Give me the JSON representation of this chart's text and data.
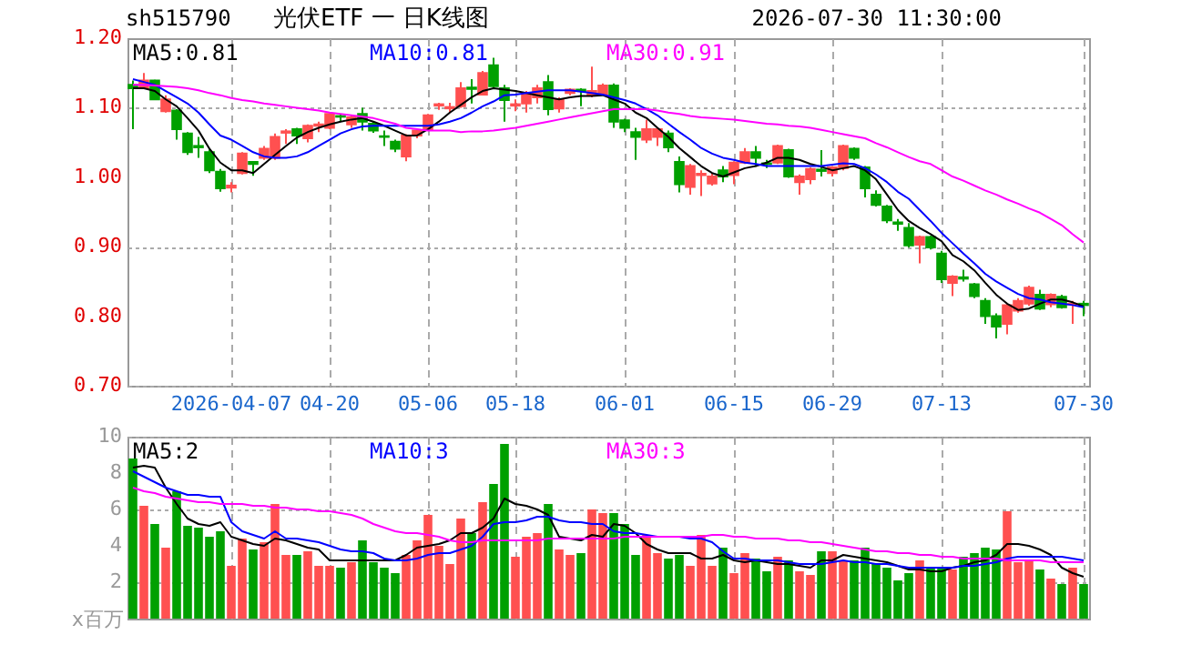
{
  "chart_data": [
    {
      "type": "candlestick",
      "title": "光伏ETF 一 日K线图",
      "annotations": [
        "sh515790",
        "2026-07-30 11:30:00"
      ],
      "categories": [
        null,
        null,
        null,
        null,
        null,
        null,
        null,
        null,
        null,
        "2026-04-07",
        null,
        null,
        null,
        null,
        null,
        null,
        null,
        null,
        "04-20",
        null,
        null,
        null,
        null,
        null,
        null,
        null,
        null,
        "05-06",
        null,
        null,
        null,
        null,
        null,
        null,
        null,
        "05-18",
        null,
        null,
        null,
        null,
        null,
        null,
        null,
        null,
        null,
        "06-01",
        null,
        null,
        null,
        null,
        null,
        null,
        null,
        null,
        null,
        "06-15",
        null,
        null,
        null,
        null,
        null,
        null,
        null,
        null,
        "06-29",
        null,
        null,
        null,
        null,
        null,
        null,
        null,
        null,
        null,
        "07-13",
        null,
        null,
        null,
        null,
        null,
        null,
        null,
        null,
        null,
        null,
        null,
        null,
        "07-30"
      ],
      "ohlc": [
        [
          1.133,
          1.139,
          1.069,
          1.128
        ],
        [
          1.128,
          1.15,
          1.128,
          1.139
        ],
        [
          1.139,
          1.14,
          1.112,
          1.112
        ],
        [
          1.095,
          1.118,
          1.093,
          1.112
        ],
        [
          1.096,
          1.098,
          1.054,
          1.069
        ],
        [
          1.063,
          1.065,
          1.032,
          1.036
        ],
        [
          1.045,
          1.058,
          1.028,
          1.043
        ],
        [
          1.036,
          1.04,
          1.006,
          1.01
        ],
        [
          1.008,
          1.012,
          0.979,
          0.984
        ],
        [
          0.985,
          0.993,
          0.978,
          0.988
        ],
        [
          1.006,
          1.036,
          1.004,
          1.034
        ],
        [
          1.022,
          1.023,
          1.002,
          1.019
        ],
        [
          1.028,
          1.045,
          1.025,
          1.041
        ],
        [
          1.028,
          1.063,
          1.025,
          1.058
        ],
        [
          1.064,
          1.069,
          1.048,
          1.066
        ],
        [
          1.069,
          1.071,
          1.048,
          1.06
        ],
        [
          1.056,
          1.076,
          1.05,
          1.074
        ],
        [
          1.074,
          1.08,
          1.065,
          1.076
        ],
        [
          1.071,
          1.093,
          1.069,
          1.091
        ],
        [
          1.088,
          1.091,
          1.08,
          1.087
        ],
        [
          1.076,
          1.089,
          1.071,
          1.086
        ],
        [
          1.091,
          1.1,
          1.067,
          1.08
        ],
        [
          1.077,
          1.08,
          1.064,
          1.067
        ],
        [
          1.059,
          1.067,
          1.045,
          1.058
        ],
        [
          1.051,
          1.054,
          1.036,
          1.041
        ],
        [
          1.03,
          1.062,
          1.023,
          1.06
        ],
        [
          1.06,
          1.069,
          1.056,
          1.067
        ],
        [
          1.069,
          1.091,
          1.067,
          1.089
        ],
        [
          1.103,
          1.107,
          1.097,
          1.105
        ],
        [
          1.099,
          1.107,
          1.093,
          1.101
        ],
        [
          1.102,
          1.137,
          1.1,
          1.128
        ],
        [
          1.129,
          1.141,
          1.106,
          1.127
        ],
        [
          1.119,
          1.153,
          1.118,
          1.15
        ],
        [
          1.161,
          1.172,
          1.128,
          1.131
        ],
        [
          1.128,
          1.133,
          1.08,
          1.111
        ],
        [
          1.103,
          1.112,
          1.095,
          1.105
        ],
        [
          1.106,
          1.124,
          1.093,
          1.121
        ],
        [
          1.115,
          1.133,
          1.106,
          1.128
        ],
        [
          1.137,
          1.147,
          1.089,
          1.098
        ],
        [
          1.099,
          1.115,
          1.093,
          1.111
        ],
        [
          1.121,
          1.128,
          1.118,
          1.126
        ],
        [
          1.126,
          1.128,
          1.102,
          1.124
        ],
        [
          1.119,
          1.159,
          1.115,
          1.124
        ],
        [
          1.119,
          1.135,
          1.118,
          1.132
        ],
        [
          1.132,
          1.135,
          1.071,
          1.08
        ],
        [
          1.082,
          1.084,
          1.065,
          1.071
        ],
        [
          1.065,
          1.071,
          1.025,
          1.058
        ],
        [
          1.054,
          1.083,
          1.049,
          1.069
        ],
        [
          1.058,
          1.071,
          1.045,
          1.069
        ],
        [
          1.063,
          1.067,
          1.036,
          1.043
        ],
        [
          1.022,
          1.03,
          0.978,
          0.99
        ],
        [
          0.986,
          1.019,
          0.975,
          1.016
        ],
        [
          1.003,
          1.01,
          0.973,
          1.005
        ],
        [
          0.991,
          1.006,
          0.988,
          1.001
        ],
        [
          1.01,
          1.016,
          0.993,
          1.001
        ],
        [
          1.003,
          1.023,
          0.99,
          1.021
        ],
        [
          1.021,
          1.042,
          1.019,
          1.036
        ],
        [
          1.036,
          1.045,
          1.015,
          1.028
        ],
        [
          1.02,
          1.025,
          1.013,
          1.019
        ],
        [
          1.021,
          1.047,
          1.019,
          1.045
        ],
        [
          1.039,
          1.041,
          0.999,
          1.001
        ],
        [
          0.993,
          1.004,
          0.975,
          1.001
        ],
        [
          0.997,
          1.014,
          0.99,
          1.012
        ],
        [
          1.011,
          1.039,
          1.001,
          1.009
        ],
        [
          1.006,
          1.016,
          1.001,
          1.014
        ],
        [
          1.013,
          1.047,
          1.01,
          1.045
        ],
        [
          1.041,
          1.043,
          1.025,
          1.028
        ],
        [
          1.014,
          1.016,
          0.971,
          0.984
        ],
        [
          0.975,
          0.981,
          0.958,
          0.96
        ],
        [
          0.958,
          0.96,
          0.934,
          0.938
        ],
        [
          0.935,
          0.94,
          0.923,
          0.933
        ],
        [
          0.927,
          0.934,
          0.899,
          0.902
        ],
        [
          0.903,
          0.916,
          0.876,
          0.914
        ],
        [
          0.914,
          0.916,
          0.896,
          0.899
        ],
        [
          0.89,
          0.894,
          0.848,
          0.853
        ],
        [
          0.848,
          0.859,
          0.829,
          0.857
        ],
        [
          0.856,
          0.867,
          0.85,
          0.854
        ],
        [
          0.846,
          0.848,
          0.826,
          0.829
        ],
        [
          0.822,
          0.826,
          0.789,
          0.8
        ],
        [
          0.8,
          0.804,
          0.768,
          0.785
        ],
        [
          0.789,
          0.818,
          0.774,
          0.816
        ],
        [
          0.808,
          0.826,
          0.805,
          0.822
        ],
        [
          0.818,
          0.844,
          0.815,
          0.841
        ],
        [
          0.831,
          0.838,
          0.809,
          0.811
        ],
        [
          0.817,
          0.833,
          0.813,
          0.831
        ],
        [
          0.828,
          0.831,
          0.811,
          0.813
        ],
        [
          0.817,
          0.822,
          0.789,
          0.818
        ],
        [
          0.818,
          0.822,
          0.8,
          0.816
        ]
      ],
      "colors": [
        "#00a000",
        "#ff5050",
        "#00a000",
        "#ff5050",
        "#00a000",
        "#00a000",
        "#00a000",
        "#00a000",
        "#00a000",
        "#ff5050",
        "#ff5050",
        "#00a000",
        "#ff5050",
        "#ff5050",
        "#ff5050",
        "#00a000",
        "#ff5050",
        "#ff5050",
        "#ff5050",
        "#00a000",
        "#ff5050",
        "#00a000",
        "#00a000",
        "#00a000",
        "#00a000",
        "#ff5050",
        "#ff5050",
        "#ff5050",
        "#ff5050",
        "#ff5050",
        "#ff5050",
        "#00a000",
        "#ff5050",
        "#00a000",
        "#00a000",
        "#ff5050",
        "#ff5050",
        "#ff5050",
        "#00a000",
        "#ff5050",
        "#ff5050",
        "#00a000",
        "#ff5050",
        "#ff5050",
        "#00a000",
        "#00a000",
        "#00a000",
        "#ff5050",
        "#ff5050",
        "#00a000",
        "#00a000",
        "#ff5050",
        "#ff5050",
        "#ff5050",
        "#00a000",
        "#ff5050",
        "#ff5050",
        "#00a000",
        "#00a000",
        "#ff5050",
        "#00a000",
        "#ff5050",
        "#ff5050",
        "#00a000",
        "#ff5050",
        "#ff5050",
        "#00a000",
        "#00a000",
        "#00a000",
        "#00a000",
        "#00a000",
        "#00a000",
        "#ff5050",
        "#00a000",
        "#00a000",
        "#ff5050",
        "#00a000",
        "#00a000",
        "#00a000",
        "#00a000",
        "#ff5050",
        "#ff5050",
        "#ff5050",
        "#00a000",
        "#ff5050",
        "#00a000",
        "#ff5050",
        "#00a000"
      ],
      "series": [
        {
          "name": "MA5:0.81",
          "color": "#000000",
          "type": "line",
          "values": [
            1.128,
            1.128,
            1.124,
            1.112,
            1.102,
            1.085,
            1.067,
            1.041,
            1.021,
            1.01,
            1.01,
            1.006,
            1.019,
            1.032,
            1.045,
            1.057,
            1.065,
            1.071,
            1.076,
            1.08,
            1.083,
            1.085,
            1.08,
            1.074,
            1.067,
            1.06,
            1.06,
            1.069,
            1.08,
            1.093,
            1.104,
            1.115,
            1.124,
            1.128,
            1.126,
            1.124,
            1.121,
            1.118,
            1.115,
            1.112,
            1.115,
            1.117,
            1.117,
            1.118,
            1.112,
            1.106,
            1.093,
            1.085,
            1.071,
            1.058,
            1.042,
            1.029,
            1.016,
            1.006,
            1.001,
            1.007,
            1.013,
            1.016,
            1.021,
            1.028,
            1.028,
            1.025,
            1.019,
            1.015,
            1.01,
            1.013,
            1.016,
            1.01,
            0.997,
            0.975,
            0.953,
            0.937,
            0.927,
            0.918,
            0.908,
            0.888,
            0.879,
            0.866,
            0.848,
            0.831,
            0.818,
            0.809,
            0.811,
            0.818,
            0.824,
            0.824,
            0.82,
            0.814
          ]
        },
        {
          "name": "MA10:0.81",
          "color": "#0000ff",
          "type": "line",
          "values": [
            1.141,
            1.137,
            1.133,
            1.124,
            1.115,
            1.106,
            1.093,
            1.076,
            1.06,
            1.054,
            1.045,
            1.036,
            1.03,
            1.028,
            1.028,
            1.03,
            1.036,
            1.045,
            1.054,
            1.063,
            1.069,
            1.073,
            1.074,
            1.074,
            1.074,
            1.074,
            1.074,
            1.074,
            1.076,
            1.08,
            1.085,
            1.093,
            1.102,
            1.109,
            1.118,
            1.119,
            1.121,
            1.123,
            1.125,
            1.125,
            1.125,
            1.123,
            1.121,
            1.119,
            1.115,
            1.111,
            1.106,
            1.098,
            1.089,
            1.077,
            1.065,
            1.054,
            1.042,
            1.034,
            1.028,
            1.025,
            1.021,
            1.019,
            1.016,
            1.016,
            1.016,
            1.016,
            1.016,
            1.016,
            1.018,
            1.02,
            1.019,
            1.013,
            1.004,
            0.993,
            0.979,
            0.969,
            0.953,
            0.937,
            0.92,
            0.905,
            0.89,
            0.876,
            0.861,
            0.85,
            0.841,
            0.832,
            0.826,
            0.824,
            0.82,
            0.818,
            0.816,
            0.813
          ]
        },
        {
          "name": "MA30:0.91",
          "color": "#ff00ff",
          "type": "line",
          "values": [
            1.133,
            1.133,
            1.132,
            1.131,
            1.13,
            1.128,
            1.125,
            1.121,
            1.118,
            1.114,
            1.111,
            1.109,
            1.106,
            1.104,
            1.102,
            1.1,
            1.098,
            1.096,
            1.093,
            1.091,
            1.089,
            1.087,
            1.085,
            1.081,
            1.077,
            1.071,
            1.069,
            1.067,
            1.067,
            1.067,
            1.065,
            1.066,
            1.066,
            1.067,
            1.069,
            1.071,
            1.074,
            1.077,
            1.08,
            1.083,
            1.086,
            1.089,
            1.092,
            1.095,
            1.098,
            1.098,
            1.098,
            1.098,
            1.096,
            1.093,
            1.091,
            1.088,
            1.086,
            1.085,
            1.084,
            1.083,
            1.081,
            1.079,
            1.077,
            1.076,
            1.074,
            1.073,
            1.071,
            1.068,
            1.065,
            1.062,
            1.059,
            1.056,
            1.049,
            1.043,
            1.036,
            1.029,
            1.023,
            1.019,
            1.01,
            1.001,
            0.995,
            0.988,
            0.981,
            0.975,
            0.968,
            0.962,
            0.955,
            0.949,
            0.94,
            0.931,
            0.918,
            0.906
          ]
        }
      ],
      "ylim": [
        0.7,
        1.2
      ],
      "yticks": [
        {
          "value": 0.7,
          "label": "0.70"
        },
        {
          "value": 0.8,
          "label": "0.80"
        },
        {
          "value": 0.9,
          "label": "0.90"
        },
        {
          "value": 1.0,
          "label": "1.00"
        },
        {
          "value": 1.1,
          "label": "1.10"
        },
        {
          "value": 1.2,
          "label": "1.20"
        }
      ],
      "grid": true,
      "legend": "top"
    },
    {
      "type": "bar",
      "annotations": [
        "x百万"
      ],
      "categories": [
        null,
        null,
        null,
        null,
        null,
        null,
        null,
        null,
        null,
        null,
        null,
        null,
        null,
        null,
        null,
        null,
        null,
        null,
        null,
        null,
        null,
        null,
        null,
        null,
        null,
        null,
        null,
        null,
        null,
        null,
        null,
        null,
        null,
        null,
        null,
        null,
        null,
        null,
        null,
        null,
        null,
        null,
        null,
        null,
        null,
        null,
        null,
        null,
        null,
        null,
        null,
        null,
        null,
        null,
        null,
        null,
        null,
        null,
        null,
        null,
        null,
        null,
        null,
        null,
        null,
        null,
        null,
        null,
        null,
        null,
        null,
        null,
        null,
        null,
        null,
        null,
        null,
        null,
        null,
        null,
        null,
        null,
        null,
        null,
        null,
        null,
        null,
        null
      ],
      "values": [
        8.8,
        6.2,
        5.2,
        3.9,
        7.0,
        5.1,
        5.0,
        4.5,
        4.8,
        2.9,
        4.4,
        3.8,
        4.2,
        6.3,
        3.5,
        3.5,
        3.7,
        2.9,
        2.9,
        2.8,
        3.1,
        4.3,
        3.1,
        2.8,
        2.5,
        3.5,
        4.3,
        5.7,
        4.0,
        3.0,
        5.5,
        4.7,
        6.4,
        7.4,
        9.6,
        3.4,
        4.5,
        4.7,
        6.3,
        3.8,
        3.5,
        3.6,
        6.0,
        5.8,
        5.8,
        5.2,
        3.5,
        4.6,
        3.6,
        3.3,
        3.5,
        2.9,
        4.6,
        2.9,
        3.9,
        2.5,
        3.6,
        3.3,
        2.6,
        3.4,
        3.2,
        2.6,
        2.4,
        3.7,
        3.7,
        3.2,
        3.2,
        3.9,
        3.0,
        2.8,
        2.1,
        2.5,
        3.2,
        2.8,
        2.8,
        2.7,
        3.4,
        3.6,
        3.9,
        3.8,
        5.9,
        3.1,
        3.2,
        2.7,
        2.2,
        1.9,
        2.8,
        1.9
      ],
      "colors": [
        "#00a000",
        "#ff5050",
        "#00a000",
        "#ff5050",
        "#00a000",
        "#00a000",
        "#00a000",
        "#00a000",
        "#00a000",
        "#ff5050",
        "#ff5050",
        "#00a000",
        "#ff5050",
        "#ff5050",
        "#ff5050",
        "#00a000",
        "#ff5050",
        "#ff5050",
        "#ff5050",
        "#00a000",
        "#ff5050",
        "#00a000",
        "#00a000",
        "#00a000",
        "#00a000",
        "#ff5050",
        "#ff5050",
        "#ff5050",
        "#ff5050",
        "#ff5050",
        "#ff5050",
        "#00a000",
        "#ff5050",
        "#00a000",
        "#00a000",
        "#ff5050",
        "#ff5050",
        "#ff5050",
        "#00a000",
        "#ff5050",
        "#ff5050",
        "#00a000",
        "#ff5050",
        "#ff5050",
        "#00a000",
        "#00a000",
        "#00a000",
        "#ff5050",
        "#ff5050",
        "#00a000",
        "#00a000",
        "#ff5050",
        "#ff5050",
        "#ff5050",
        "#00a000",
        "#ff5050",
        "#ff5050",
        "#00a000",
        "#00a000",
        "#ff5050",
        "#00a000",
        "#ff5050",
        "#ff5050",
        "#00a000",
        "#ff5050",
        "#ff5050",
        "#00a000",
        "#00a000",
        "#00a000",
        "#00a000",
        "#00a000",
        "#00a000",
        "#ff5050",
        "#00a000",
        "#00a000",
        "#ff5050",
        "#00a000",
        "#00a000",
        "#00a000",
        "#00a000",
        "#ff5050",
        "#ff5050",
        "#ff5050",
        "#00a000",
        "#ff5050",
        "#00a000",
        "#ff5050",
        "#00a000"
      ],
      "series": [
        {
          "name": "MA5:2",
          "color": "#000000",
          "type": "line",
          "values": [
            8.3,
            8.4,
            8.3,
            7.2,
            6.3,
            5.5,
            5.2,
            5.1,
            5.3,
            4.5,
            4.3,
            4.1,
            4.0,
            4.4,
            4.3,
            4.1,
            3.9,
            3.8,
            3.2,
            3.2,
            3.2,
            3.2,
            3.2,
            3.2,
            3.2,
            3.5,
            3.9,
            4.0,
            4.1,
            4.3,
            4.7,
            4.7,
            5.0,
            5.5,
            6.6,
            6.3,
            6.2,
            6.0,
            5.7,
            4.5,
            4.4,
            4.3,
            4.6,
            4.5,
            5.2,
            5.1,
            4.7,
            4.1,
            3.8,
            3.6,
            3.6,
            3.6,
            3.3,
            3.3,
            3.5,
            3.2,
            3.1,
            3.2,
            3.1,
            3.0,
            3.0,
            2.9,
            2.8,
            3.2,
            3.2,
            3.5,
            3.4,
            3.3,
            3.2,
            3.1,
            2.9,
            2.7,
            2.7,
            2.6,
            2.6,
            2.8,
            2.9,
            3.1,
            3.2,
            3.5,
            4.1,
            4.1,
            4.0,
            3.8,
            3.5,
            2.8,
            2.5,
            2.3
          ]
        },
        {
          "name": "MA10:3",
          "color": "#0000ff",
          "type": "line",
          "values": [
            8.1,
            7.8,
            7.5,
            7.2,
            7.0,
            6.8,
            6.8,
            6.7,
            6.7,
            5.3,
            4.8,
            4.6,
            4.4,
            4.8,
            4.4,
            4.4,
            4.3,
            4.2,
            4.0,
            3.8,
            3.7,
            3.7,
            3.6,
            3.3,
            3.2,
            3.2,
            3.3,
            3.5,
            3.6,
            3.6,
            3.8,
            4.0,
            4.5,
            5.2,
            5.3,
            5.3,
            5.4,
            5.6,
            5.6,
            5.4,
            5.3,
            5.3,
            5.2,
            5.2,
            4.8,
            4.7,
            4.7,
            4.6,
            4.5,
            4.5,
            4.5,
            4.4,
            4.4,
            4.2,
            3.7,
            3.3,
            3.3,
            3.2,
            3.2,
            3.2,
            3.1,
            3.0,
            3.0,
            3.0,
            3.1,
            3.2,
            3.1,
            3.1,
            3.0,
            3.0,
            2.9,
            2.8,
            2.8,
            2.8,
            2.8,
            2.8,
            2.9,
            2.9,
            3.0,
            3.1,
            3.3,
            3.4,
            3.4,
            3.4,
            3.4,
            3.4,
            3.3,
            3.2
          ]
        },
        {
          "name": "MA30:3",
          "color": "#ff00ff",
          "type": "line",
          "values": [
            7.2,
            7.0,
            6.9,
            6.7,
            6.6,
            6.5,
            6.4,
            6.4,
            6.3,
            6.3,
            6.3,
            6.2,
            6.2,
            6.1,
            6.1,
            6.0,
            6.0,
            5.9,
            5.9,
            5.8,
            5.7,
            5.5,
            5.2,
            5.0,
            4.8,
            4.7,
            4.7,
            4.6,
            4.5,
            4.3,
            4.2,
            4.2,
            4.3,
            4.3,
            4.3,
            4.3,
            4.3,
            4.3,
            4.4,
            4.4,
            4.4,
            4.4,
            4.4,
            4.4,
            4.4,
            4.5,
            4.5,
            4.5,
            4.5,
            4.5,
            4.5,
            4.5,
            4.5,
            4.6,
            4.6,
            4.5,
            4.5,
            4.4,
            4.4,
            4.4,
            4.3,
            4.3,
            4.2,
            4.2,
            4.1,
            4.0,
            3.9,
            3.8,
            3.7,
            3.7,
            3.6,
            3.6,
            3.5,
            3.5,
            3.4,
            3.4,
            3.3,
            3.3,
            3.3,
            3.3,
            3.2,
            3.2,
            3.2,
            3.2,
            3.1,
            3.1,
            3.1,
            3.1
          ]
        }
      ],
      "ylim": [
        0,
        10
      ],
      "yticks": [
        2,
        4,
        6,
        8,
        10
      ],
      "grid": true,
      "legend": "top",
      "tick_labels": "y"
    }
  ]
}
